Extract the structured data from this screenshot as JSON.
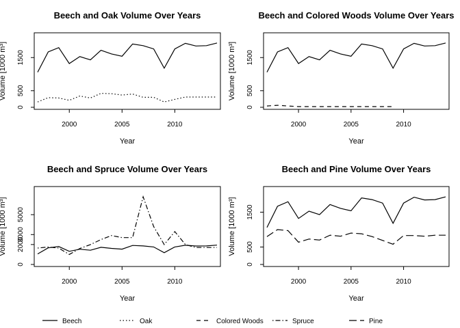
{
  "figure": {
    "legend": [
      {
        "name": "Beech",
        "style": "solid"
      },
      {
        "name": "Oak",
        "style": "dotted"
      },
      {
        "name": "Colored Woods",
        "style": "dashed"
      },
      {
        "name": "Spruce",
        "style": "dotdash"
      },
      {
        "name": "Pine",
        "style": "longdash"
      }
    ],
    "legend_position": "bottom"
  },
  "chart_data": [
    {
      "type": "line",
      "title": "Beech and Oak Volume Over Years",
      "xlabel": "Year",
      "ylabel": "Volume [1000 m³]",
      "xlim": [
        1997,
        2014
      ],
      "ylim": [
        0,
        2000
      ],
      "xticks": [
        2000,
        2005,
        2010
      ],
      "yticks": [
        0,
        500,
        1500
      ],
      "grid": false,
      "x": [
        1997,
        1998,
        1999,
        2000,
        2001,
        2002,
        2003,
        2004,
        2005,
        2006,
        2007,
        2008,
        2009,
        2010,
        2011,
        2012,
        2013,
        2014
      ],
      "series": [
        {
          "name": "Beech",
          "style": "solid",
          "values": [
            1060,
            1670,
            1800,
            1320,
            1530,
            1430,
            1720,
            1610,
            1540,
            1910,
            1860,
            1760,
            1180,
            1760,
            1930,
            1850,
            1860,
            1940
          ]
        },
        {
          "name": "Oak",
          "style": "dotted",
          "values": [
            160,
            290,
            280,
            210,
            340,
            280,
            420,
            410,
            370,
            400,
            300,
            300,
            160,
            240,
            310,
            310,
            310,
            310
          ]
        }
      ]
    },
    {
      "type": "line",
      "title": "Beech and Colored Woods Volume Over Years",
      "xlabel": "Year",
      "ylabel": "Volume [1000 m³]",
      "xlim": [
        1997,
        2014
      ],
      "ylim": [
        0,
        2000
      ],
      "xticks": [
        2000,
        2005,
        2010
      ],
      "yticks": [
        0,
        500,
        1500
      ],
      "grid": false,
      "x": [
        1997,
        1998,
        1999,
        2000,
        2001,
        2002,
        2003,
        2004,
        2005,
        2006,
        2007,
        2008,
        2009,
        2010,
        2011,
        2012,
        2013,
        2014
      ],
      "series": [
        {
          "name": "Beech",
          "style": "solid",
          "values": [
            1060,
            1670,
            1800,
            1320,
            1530,
            1430,
            1720,
            1610,
            1540,
            1910,
            1860,
            1760,
            1180,
            1760,
            1930,
            1850,
            1860,
            1940
          ]
        },
        {
          "name": "Colored Woods",
          "style": "dashed",
          "values": [
            40,
            60,
            40,
            20,
            20,
            20,
            20,
            20,
            20,
            20,
            20,
            20,
            20,
            null,
            null,
            null,
            null,
            null
          ]
        }
      ]
    },
    {
      "type": "line",
      "title": "Beech and Spruce Volume Over Years",
      "xlabel": "Year",
      "ylabel": "Volume [1000 m³]",
      "xlim": [
        1997,
        2014
      ],
      "ylim": [
        0,
        7000
      ],
      "xticks": [
        2000,
        2005,
        2010
      ],
      "yticks": [
        0,
        2000,
        3000,
        5000
      ],
      "grid": false,
      "x": [
        1997,
        1998,
        1999,
        2000,
        2001,
        2002,
        2003,
        2004,
        2005,
        2006,
        2007,
        2008,
        2009,
        2010,
        2011,
        2012,
        2013,
        2014
      ],
      "series": [
        {
          "name": "Beech",
          "style": "solid",
          "values": [
            1060,
            1670,
            1800,
            1320,
            1530,
            1430,
            1720,
            1610,
            1540,
            1910,
            1860,
            1760,
            1180,
            1760,
            1930,
            1850,
            1860,
            1940
          ]
        },
        {
          "name": "Spruce",
          "style": "dotdash",
          "values": [
            1650,
            1750,
            1650,
            1000,
            1600,
            2000,
            2500,
            2900,
            2700,
            2700,
            6800,
            3800,
            2000,
            3300,
            2000,
            1700,
            1700,
            1700
          ]
        }
      ]
    },
    {
      "type": "line",
      "title": "Beech and Pine Volume Over Years",
      "xlabel": "Year",
      "ylabel": "Volume [1000 m³]",
      "xlim": [
        1997,
        2014
      ],
      "ylim": [
        0,
        2000
      ],
      "xticks": [
        2000,
        2005,
        2010
      ],
      "yticks": [
        0,
        500,
        1500
      ],
      "grid": false,
      "x": [
        1997,
        1998,
        1999,
        2000,
        2001,
        2002,
        2003,
        2004,
        2005,
        2006,
        2007,
        2008,
        2009,
        2010,
        2011,
        2012,
        2013,
        2014
      ],
      "series": [
        {
          "name": "Beech",
          "style": "solid",
          "values": [
            1060,
            1670,
            1800,
            1320,
            1530,
            1430,
            1720,
            1610,
            1540,
            1910,
            1860,
            1760,
            1180,
            1760,
            1930,
            1850,
            1860,
            1940
          ]
        },
        {
          "name": "Pine",
          "style": "longdash",
          "values": [
            800,
            1000,
            970,
            640,
            730,
            700,
            840,
            810,
            900,
            880,
            800,
            690,
            580,
            830,
            830,
            810,
            840,
            840
          ]
        }
      ]
    }
  ]
}
